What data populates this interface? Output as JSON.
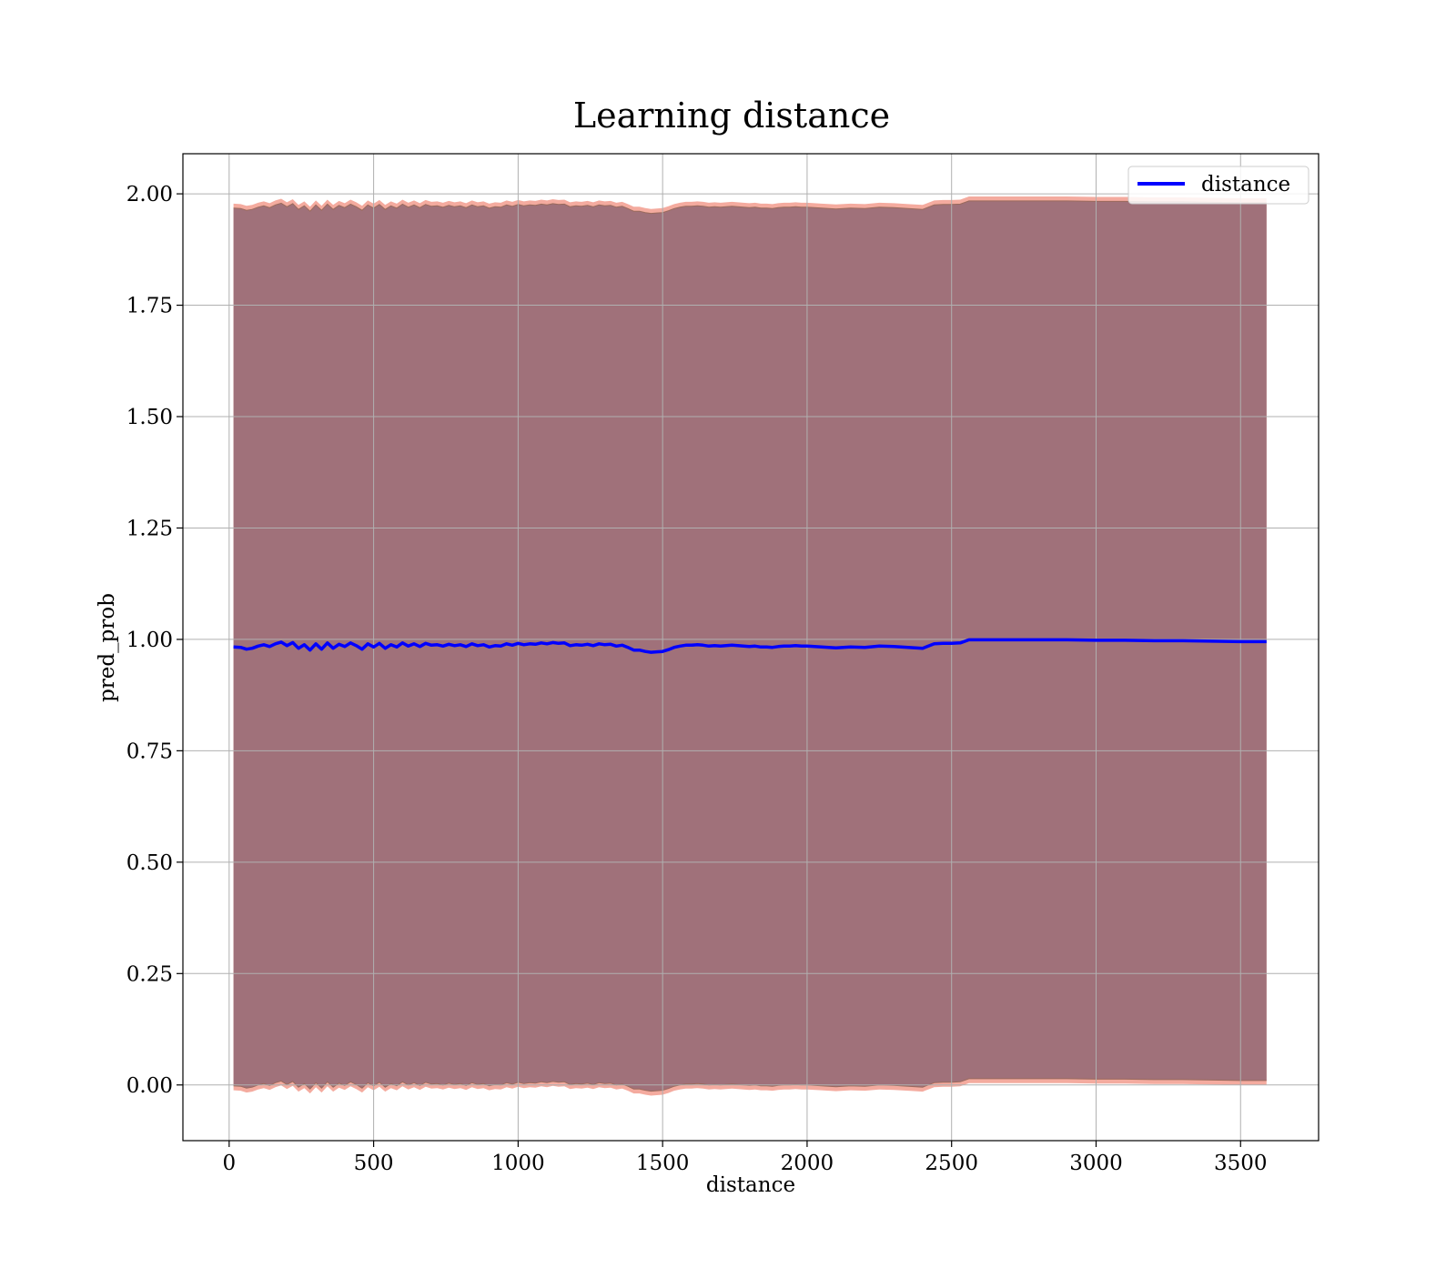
{
  "chart_data": {
    "type": "line",
    "title": "Learning distance",
    "xlabel": "distance",
    "ylabel": "pred_prob",
    "xlim": [
      -160,
      3770
    ],
    "ylim": [
      -0.125,
      2.09
    ],
    "xticks": [
      0,
      500,
      1000,
      1500,
      2000,
      2500,
      3000,
      3500
    ],
    "xtick_labels": [
      "0",
      "500",
      "1000",
      "1500",
      "2000",
      "2500",
      "3000",
      "3500"
    ],
    "yticks": [
      0.0,
      0.25,
      0.5,
      0.75,
      1.0,
      1.25,
      1.5,
      1.75,
      2.0
    ],
    "ytick_labels": [
      "0.00",
      "0.25",
      "0.50",
      "0.75",
      "1.00",
      "1.25",
      "1.50",
      "1.75",
      "2.00"
    ],
    "grid": true,
    "legend": {
      "position": "top-right",
      "entries": [
        "distance"
      ]
    },
    "series": [
      {
        "name": "distance",
        "color": "#0000ff",
        "x": [
          15,
          40,
          60,
          80,
          100,
          120,
          140,
          160,
          180,
          200,
          220,
          240,
          260,
          280,
          300,
          320,
          340,
          360,
          380,
          400,
          420,
          440,
          460,
          480,
          500,
          520,
          540,
          560,
          580,
          600,
          620,
          640,
          660,
          680,
          700,
          720,
          740,
          760,
          780,
          800,
          820,
          840,
          860,
          880,
          900,
          920,
          940,
          960,
          980,
          1000,
          1020,
          1040,
          1060,
          1080,
          1100,
          1120,
          1140,
          1160,
          1180,
          1200,
          1220,
          1240,
          1260,
          1280,
          1300,
          1320,
          1340,
          1360,
          1380,
          1400,
          1420,
          1440,
          1460,
          1480,
          1500,
          1520,
          1540,
          1560,
          1580,
          1600,
          1620,
          1640,
          1660,
          1680,
          1700,
          1720,
          1740,
          1760,
          1780,
          1800,
          1820,
          1840,
          1860,
          1880,
          1900,
          1920,
          1940,
          1960,
          1980,
          2000,
          2050,
          2100,
          2150,
          2200,
          2250,
          2300,
          2350,
          2400,
          2440,
          2470,
          2500,
          2530,
          2560,
          2600,
          2700,
          2800,
          2900,
          3000,
          3100,
          3200,
          3300,
          3400,
          3500,
          3590
        ],
        "values": [
          0.983,
          0.982,
          0.978,
          0.98,
          0.985,
          0.988,
          0.984,
          0.99,
          0.994,
          0.986,
          0.993,
          0.98,
          0.988,
          0.976,
          0.99,
          0.978,
          0.992,
          0.98,
          0.989,
          0.984,
          0.992,
          0.986,
          0.978,
          0.99,
          0.983,
          0.991,
          0.98,
          0.988,
          0.983,
          0.992,
          0.985,
          0.99,
          0.984,
          0.991,
          0.987,
          0.988,
          0.985,
          0.989,
          0.986,
          0.988,
          0.984,
          0.99,
          0.986,
          0.988,
          0.983,
          0.986,
          0.985,
          0.99,
          0.987,
          0.991,
          0.988,
          0.99,
          0.989,
          0.992,
          0.99,
          0.993,
          0.991,
          0.992,
          0.986,
          0.988,
          0.987,
          0.989,
          0.986,
          0.99,
          0.988,
          0.989,
          0.985,
          0.987,
          0.982,
          0.976,
          0.976,
          0.973,
          0.971,
          0.972,
          0.973,
          0.977,
          0.982,
          0.985,
          0.987,
          0.987,
          0.988,
          0.987,
          0.985,
          0.986,
          0.985,
          0.986,
          0.987,
          0.986,
          0.985,
          0.984,
          0.985,
          0.983,
          0.983,
          0.982,
          0.984,
          0.985,
          0.985,
          0.986,
          0.985,
          0.985,
          0.983,
          0.981,
          0.983,
          0.982,
          0.985,
          0.984,
          0.982,
          0.98,
          0.99,
          0.991,
          0.991,
          0.992,
          0.999,
          0.999,
          0.999,
          0.999,
          0.999,
          0.998,
          0.998,
          0.997,
          0.997,
          0.996,
          0.995,
          0.995
        ],
        "band_color": "#a0717a",
        "band_edge_color": "#f29c8e"
      }
    ]
  }
}
